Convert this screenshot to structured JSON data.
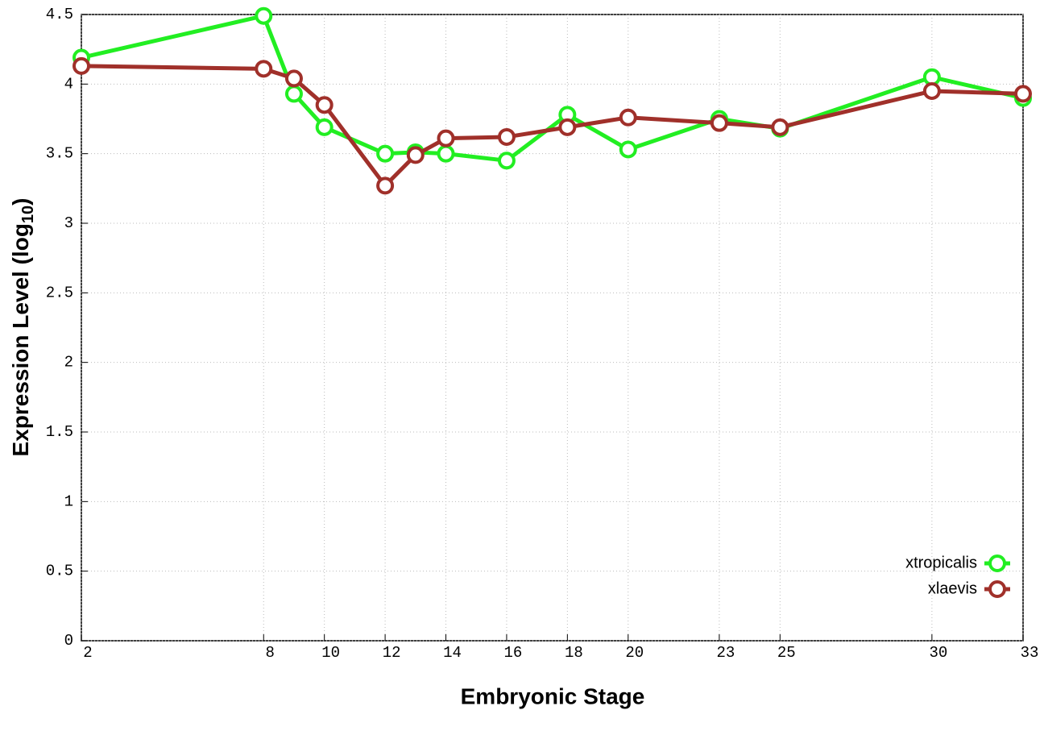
{
  "chart_data": {
    "type": "line",
    "x_label": "Embryonic Stage",
    "y_label": [
      "Expression Level (log",
      "10",
      ")"
    ],
    "x": [
      2,
      8,
      9,
      10,
      12,
      13,
      14,
      16,
      18,
      20,
      23,
      25,
      30,
      33
    ],
    "series": [
      {
        "name": "xtropicalis",
        "color": "#22ee22",
        "values": [
          4.19,
          4.49,
          3.93,
          3.69,
          3.5,
          3.51,
          3.5,
          3.45,
          3.78,
          3.53,
          3.75,
          3.68,
          4.05,
          3.9
        ]
      },
      {
        "name": "xlaevis",
        "color": "#a0302a",
        "values": [
          4.13,
          4.11,
          4.04,
          3.85,
          3.27,
          3.49,
          3.61,
          3.62,
          3.69,
          3.76,
          3.72,
          3.69,
          3.95,
          3.93
        ]
      }
    ],
    "xlim": [
      2,
      33
    ],
    "xticks": [
      2,
      8,
      10,
      12,
      14,
      16,
      18,
      20,
      23,
      25,
      30,
      33
    ],
    "ylim": [
      0,
      4.5
    ],
    "yticks": [
      0,
      0.5,
      1,
      1.5,
      2,
      2.5,
      3,
      3.5,
      4,
      4.5
    ],
    "grid": true,
    "legend": "lower right"
  }
}
